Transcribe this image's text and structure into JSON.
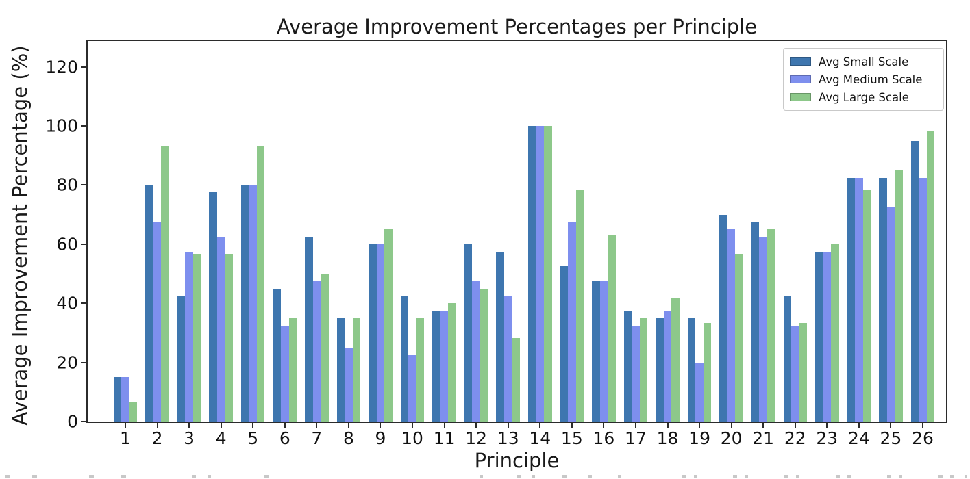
{
  "chart_data": {
    "type": "bar",
    "title": "Average Improvement Percentages per Principle",
    "xlabel": "Principle",
    "ylabel": "Average Improvement Percentage (%)",
    "categories": [
      "1",
      "2",
      "3",
      "4",
      "5",
      "6",
      "7",
      "8",
      "9",
      "10",
      "11",
      "12",
      "13",
      "14",
      "15",
      "16",
      "17",
      "18",
      "19",
      "20",
      "21",
      "22",
      "23",
      "24",
      "25",
      "26"
    ],
    "series": [
      {
        "name": "Avg Small Scale",
        "color": "#3E76AF",
        "values": [
          15,
          80,
          42.5,
          77.5,
          80,
          45,
          62.5,
          35,
          60,
          42.5,
          37.5,
          60,
          57.5,
          100,
          52.5,
          47.5,
          37.5,
          35,
          35,
          70,
          67.5,
          42.5,
          57.5,
          82.5,
          82.5,
          95
        ]
      },
      {
        "name": "Avg Medium Scale",
        "color": "#7E8FEE",
        "values": [
          15,
          67.5,
          57.5,
          62.5,
          80,
          32.5,
          47.5,
          25,
          60,
          22.5,
          37.5,
          47.5,
          42.5,
          100,
          67.5,
          47.5,
          32.5,
          37.5,
          20,
          65,
          62.5,
          32.5,
          57.5,
          82.5,
          72.5,
          82.5
        ]
      },
      {
        "name": "Avg Large Scale",
        "color": "#8DC88A",
        "values": [
          6.7,
          93.3,
          56.7,
          56.7,
          93.3,
          35,
          50,
          35,
          65,
          35,
          40,
          45,
          28.3,
          100,
          78.3,
          63.3,
          35,
          41.7,
          33.3,
          56.7,
          65,
          33.3,
          60,
          78.3,
          85,
          98.3
        ]
      }
    ],
    "yticks": [
      0,
      20,
      40,
      60,
      80,
      100,
      120
    ],
    "ylim": [
      0,
      129.2
    ],
    "grid": false,
    "legend_position": "upper right",
    "axis_color": "#2b2b2b"
  },
  "artifacts": {
    "bottom_cropped_marks": [
      [
        8,
        6
      ],
      [
        46,
        8
      ],
      [
        130,
        7
      ],
      [
        176,
        8
      ],
      [
        280,
        6
      ],
      [
        303,
        5
      ],
      [
        386,
        7
      ],
      [
        700,
        5
      ],
      [
        755,
        6
      ],
      [
        776,
        5
      ],
      [
        820,
        8
      ],
      [
        858,
        6
      ],
      [
        902,
        5
      ],
      [
        996,
        6
      ],
      [
        1013,
        5
      ],
      [
        1070,
        6
      ],
      [
        1087,
        5
      ],
      [
        1145,
        6
      ],
      [
        1162,
        5
      ],
      [
        1220,
        6
      ],
      [
        1237,
        5
      ],
      [
        1295,
        6
      ],
      [
        1312,
        5
      ],
      [
        1370,
        6
      ],
      [
        1387,
        5
      ],
      [
        1408,
        4
      ]
    ]
  }
}
